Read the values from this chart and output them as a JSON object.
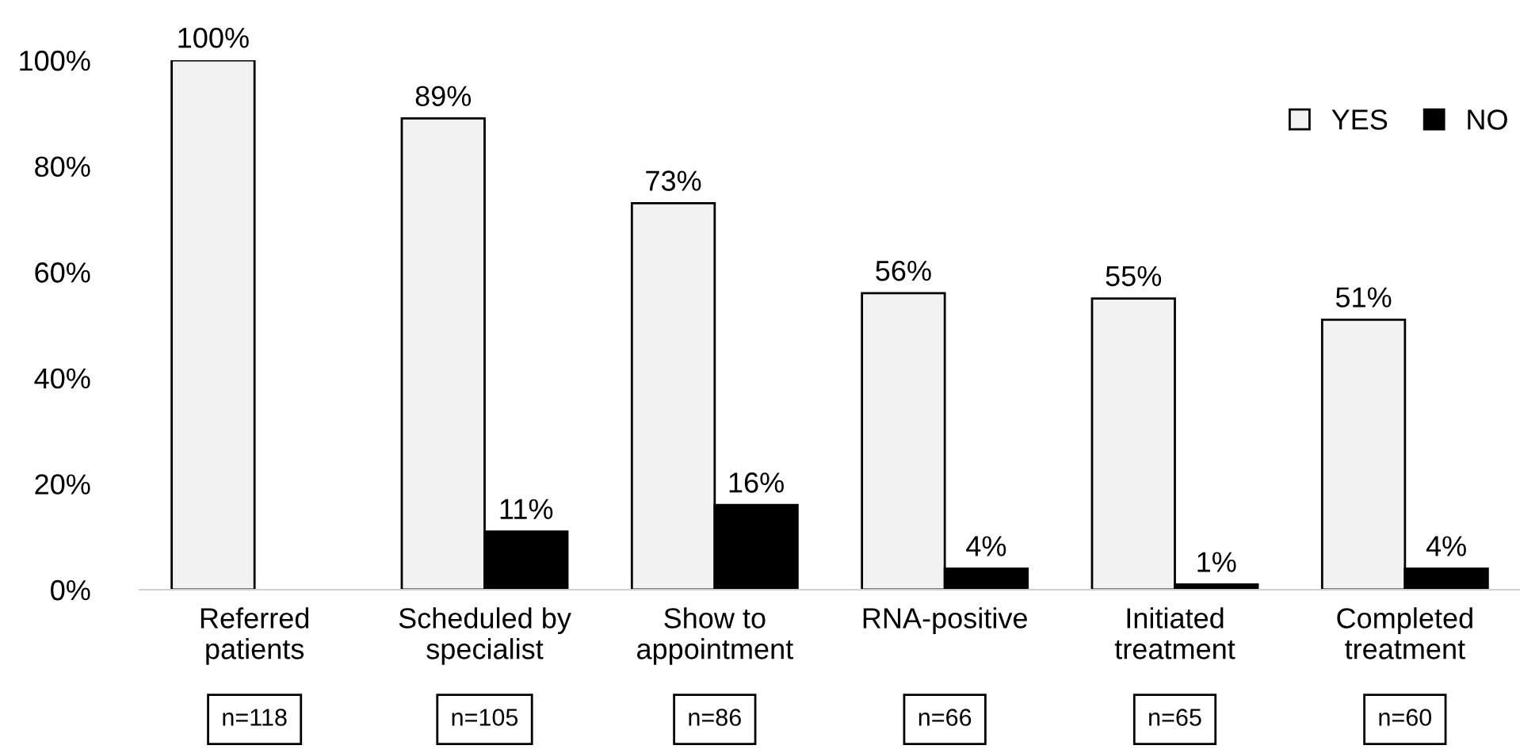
{
  "chart_data": {
    "type": "bar",
    "categories": [
      "Referred\npatients",
      "Scheduled by\nspecialist",
      "Show to\nappointment",
      "RNA-positive",
      "Initiated\ntreatment",
      "Completed\ntreatment"
    ],
    "series": [
      {
        "name": "YES",
        "color": "#f2f2f2",
        "values": [
          100,
          89,
          73,
          56,
          55,
          51
        ]
      },
      {
        "name": "NO",
        "color": "#000000",
        "values": [
          null,
          11,
          16,
          4,
          1,
          4
        ]
      }
    ],
    "ylim": [
      0,
      100
    ],
    "yticks": [
      {
        "value": 0,
        "label": "0%"
      },
      {
        "value": 20,
        "label": "20%"
      },
      {
        "value": 40,
        "label": "40%"
      },
      {
        "value": 60,
        "label": "60%"
      },
      {
        "value": 80,
        "label": "80%"
      },
      {
        "value": 100,
        "label": "100%"
      }
    ],
    "value_labels": [
      [
        "100%",
        "89%",
        "73%",
        "56%",
        "55%",
        "51%"
      ],
      [
        null,
        "11%",
        "16%",
        "4%",
        "1%",
        "4%"
      ]
    ],
    "annotations": [
      "n=118",
      "n=105",
      "n=86",
      "n=66",
      "n=65",
      "n=60"
    ],
    "grid": false,
    "legend": "top right"
  }
}
